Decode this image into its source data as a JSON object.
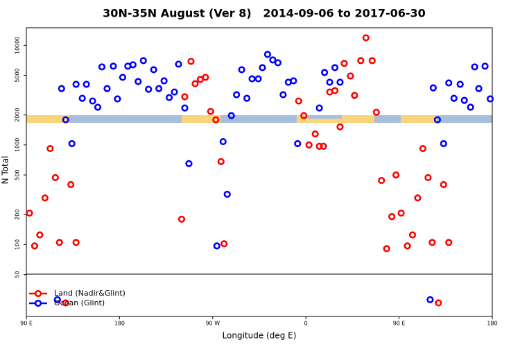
{
  "chart_data": {
    "type": "scatter",
    "title": "30N-35N August (Ver 8)   2014-09-06 to 2017-06-30",
    "x_label": "Longitude (deg E)",
    "y_label": "N Total",
    "log_y": true,
    "legend": "lower left",
    "xlim": [
      90,
      540
    ],
    "xticks": [
      {
        "value": 90,
        "label": "90 E"
      },
      180,
      {
        "value": 270,
        "label": "90 W"
      },
      {
        "value": 360,
        "label": "0"
      },
      {
        "value": 450,
        "label": "90 E"
      },
      {
        "value": 540,
        "label": "180"
      }
    ],
    "ylim": [
      19,
      15000
    ],
    "yticks": [
      50,
      100,
      200,
      500,
      1000,
      2000,
      5000,
      10000
    ],
    "series": [
      {
        "name": "Land (Nadir&Glint)",
        "color": "#ff0000",
        "x": [
          93,
          98,
          103,
          108,
          113,
          118,
          122,
          128,
          133,
          138,
          240,
          243,
          249,
          253,
          258,
          263,
          268,
          273,
          278,
          281,
          353,
          358,
          363,
          369,
          373,
          377,
          383,
          388,
          393,
          397,
          403,
          407,
          413,
          418,
          424,
          428,
          433,
          438,
          443,
          447,
          452,
          458,
          463,
          468,
          473,
          478,
          482,
          488,
          493,
          498
        ],
        "values": [
          207,
          97,
          125,
          294,
          920,
          470,
          105,
          26,
          400,
          105,
          180,
          3040,
          6900,
          4120,
          4540,
          4770,
          2170,
          1790,
          680,
          102,
          2760,
          1970,
          1000,
          1290,
          970,
          970,
          3400,
          3510,
          1520,
          6580,
          4920,
          3140,
          7020,
          11900,
          7020,
          2130,
          440,
          91,
          191,
          500,
          207,
          97,
          125,
          294,
          920,
          470,
          105,
          26,
          400,
          105
        ]
      },
      {
        "name": "Ocean (Glint)",
        "color": "#0000ff",
        "x": [
          124,
          128,
          120,
          134,
          138,
          144,
          148,
          154,
          159,
          163,
          168,
          174,
          178,
          183,
          188,
          193,
          198,
          203,
          208,
          213,
          218,
          223,
          228,
          233,
          237,
          243,
          247,
          274,
          280,
          284,
          288,
          293,
          298,
          303,
          308,
          314,
          318,
          323,
          328,
          333,
          338,
          343,
          348,
          352,
          373,
          378,
          383,
          388,
          393,
          480,
          483,
          487,
          493,
          498,
          503,
          509,
          513,
          519,
          523,
          527,
          533,
          538
        ],
        "values": [
          3680,
          1790,
          28,
          1030,
          4060,
          2940,
          4060,
          2760,
          2390,
          6070,
          3680,
          6170,
          2900,
          4770,
          6170,
          6370,
          4330,
          7020,
          3620,
          5690,
          3680,
          4400,
          2990,
          3400,
          6470,
          2350,
          650,
          97,
          1080,
          320,
          1970,
          3190,
          5690,
          2940,
          4610,
          4610,
          5970,
          8110,
          7130,
          6680,
          3190,
          4260,
          4400,
          1030,
          2350,
          5330,
          4260,
          5970,
          4260,
          28,
          3740,
          1790,
          1030,
          4190,
          2940,
          4060,
          2800,
          2390,
          6070,
          3680,
          6170,
          2900
        ]
      }
    ]
  }
}
